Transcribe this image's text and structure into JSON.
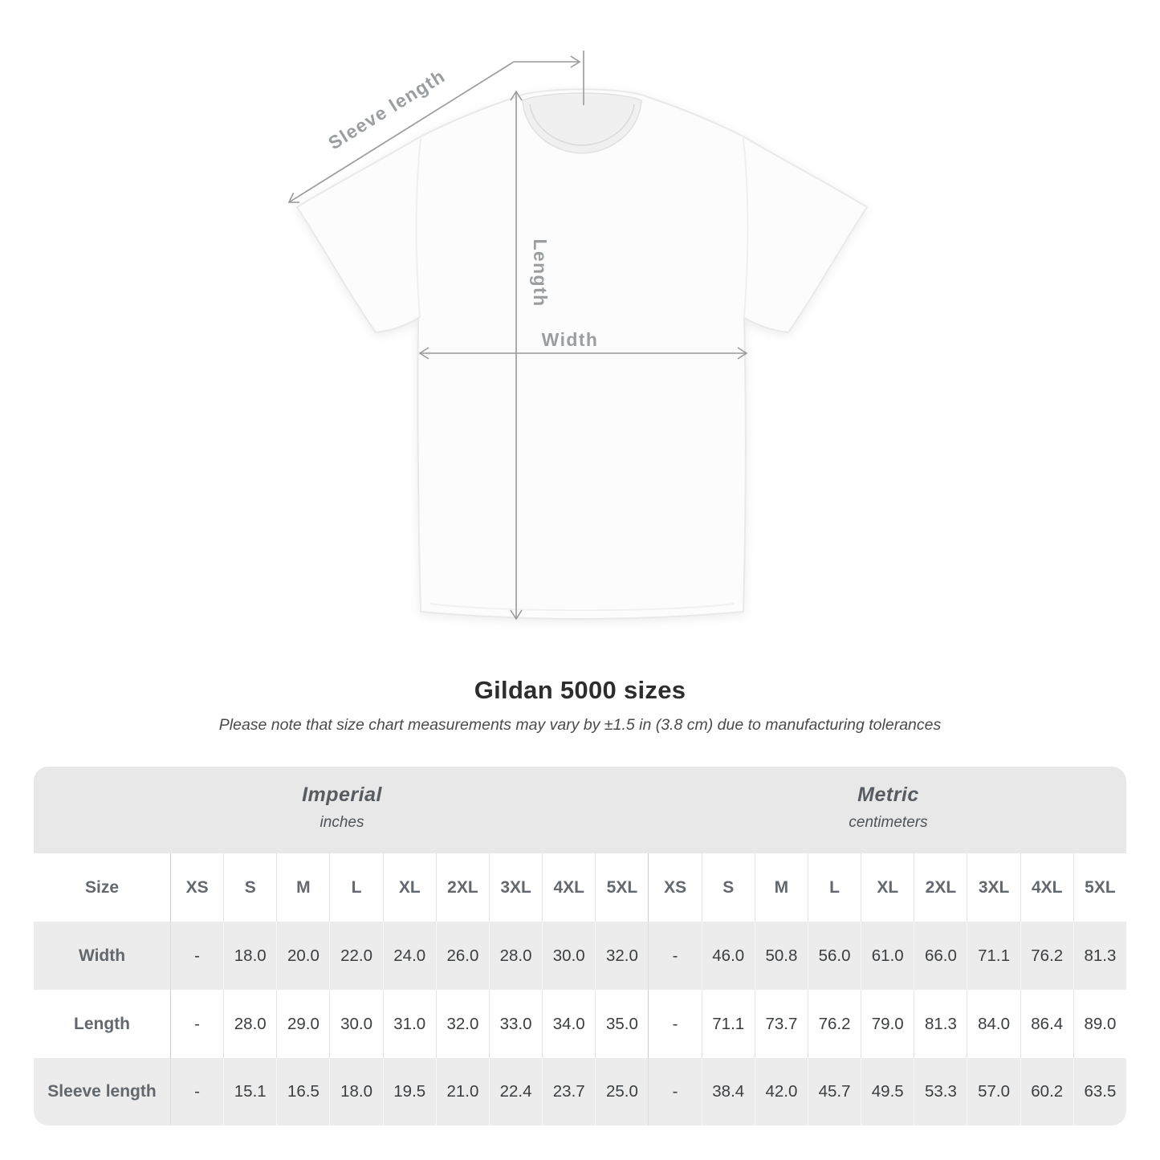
{
  "diagram": {
    "sleeve_label": "Sleeve length",
    "length_label": "Length",
    "width_label": "Width"
  },
  "title": "Gildan 5000 sizes",
  "subtitle": "Please note that size chart measurements may vary by ±1.5 in (3.8 cm) due to manufacturing tolerances",
  "table": {
    "unit_groups": [
      {
        "label": "Imperial",
        "sublabel": "inches"
      },
      {
        "label": "Metric",
        "sublabel": "centimeters"
      }
    ],
    "size_header": "Size",
    "sizes": [
      "XS",
      "S",
      "M",
      "L",
      "XL",
      "2XL",
      "3XL",
      "4XL",
      "5XL"
    ],
    "rows": [
      {
        "label": "Width",
        "imperial": [
          "-",
          "18.0",
          "20.0",
          "22.0",
          "24.0",
          "26.0",
          "28.0",
          "30.0",
          "32.0"
        ],
        "metric": [
          "-",
          "46.0",
          "50.8",
          "56.0",
          "61.0",
          "66.0",
          "71.1",
          "76.2",
          "81.3"
        ]
      },
      {
        "label": "Length",
        "imperial": [
          "-",
          "28.0",
          "29.0",
          "30.0",
          "31.0",
          "32.0",
          "33.0",
          "34.0",
          "35.0"
        ],
        "metric": [
          "-",
          "71.1",
          "73.7",
          "76.2",
          "79.0",
          "81.3",
          "84.0",
          "86.4",
          "89.0"
        ]
      },
      {
        "label": "Sleeve length",
        "imperial": [
          "-",
          "15.1",
          "16.5",
          "18.0",
          "19.5",
          "21.0",
          "22.4",
          "23.7",
          "25.0"
        ],
        "metric": [
          "-",
          "38.4",
          "42.0",
          "45.7",
          "49.5",
          "53.3",
          "57.0",
          "60.2",
          "63.5"
        ]
      }
    ]
  },
  "chart_data": {
    "type": "table",
    "title": "Gildan 5000 sizes",
    "note": "Measurements may vary by ±1.5 in (3.8 cm)",
    "unit_groups": [
      "inches",
      "centimeters"
    ],
    "columns": [
      "XS",
      "S",
      "M",
      "L",
      "XL",
      "2XL",
      "3XL",
      "4XL",
      "5XL"
    ],
    "rows": [
      {
        "measure": "Width (in)",
        "values": [
          null,
          18.0,
          20.0,
          22.0,
          24.0,
          26.0,
          28.0,
          30.0,
          32.0
        ]
      },
      {
        "measure": "Length (in)",
        "values": [
          null,
          28.0,
          29.0,
          30.0,
          31.0,
          32.0,
          33.0,
          34.0,
          35.0
        ]
      },
      {
        "measure": "Sleeve length (in)",
        "values": [
          null,
          15.1,
          16.5,
          18.0,
          19.5,
          21.0,
          22.4,
          23.7,
          25.0
        ]
      },
      {
        "measure": "Width (cm)",
        "values": [
          null,
          46.0,
          50.8,
          56.0,
          61.0,
          66.0,
          71.1,
          76.2,
          81.3
        ]
      },
      {
        "measure": "Length (cm)",
        "values": [
          null,
          71.1,
          73.7,
          76.2,
          79.0,
          81.3,
          84.0,
          86.4,
          89.0
        ]
      },
      {
        "measure": "Sleeve length (cm)",
        "values": [
          null,
          38.4,
          42.0,
          45.7,
          49.5,
          53.3,
          57.0,
          60.2,
          63.5
        ]
      }
    ]
  },
  "colors": {
    "table_band": "#e8e8e8",
    "row_stripe": "#ececec",
    "annotation_gray": "#9a9a9a",
    "value_text": "#3b3e40",
    "label_text": "#62686e"
  }
}
